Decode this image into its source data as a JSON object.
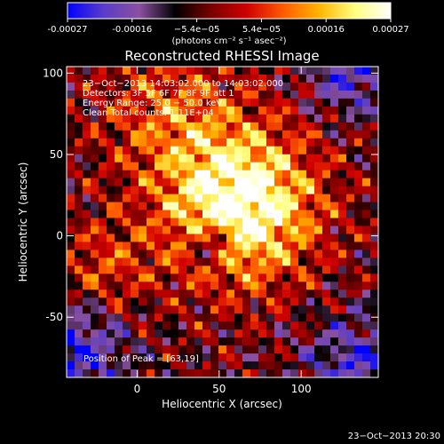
{
  "chart_data": {
    "type": "heatmap",
    "title": "Reconstructed RHESSI Image",
    "xlabel": "Heliocentric X (arcsec)",
    "ylabel": "Heliocentric Y (arcsec)",
    "xlim": [
      -43,
      147
    ],
    "ylim": [
      -87,
      104
    ],
    "xticks": [
      0,
      50,
      100
    ],
    "yticks": [
      -50,
      0,
      50,
      100
    ],
    "colorbar": {
      "min": -0.00027,
      "max": 0.00027,
      "ticks": [
        "-0.00027",
        "-0.00016",
        "−5.4e−05",
        "5.4e−05",
        "0.00016",
        "0.00027"
      ],
      "unit_label": "(photons cm⁻² s⁻¹ asec⁻²)",
      "colormap": [
        "#0000ff",
        "#5a3cc8",
        "#8a50a0",
        "#000000",
        "#7a0000",
        "#d00000",
        "#ff5a00",
        "#ffb400",
        "#ffff80",
        "#ffffff"
      ]
    },
    "annotations": [
      "23−Oct−2013 14:03:02.000 to 14:03:02.000",
      "Detectors: 3F 5F 6F 7F 8F 9F att 1",
      "Energy Range: 25.0 − 50.0 keV",
      "Clean     Total counts: 1.11E+04"
    ],
    "peak_label": "Position of Peak = [63,19]",
    "peak": [
      63,
      19
    ]
  },
  "footer": {
    "timestamp": "23−Oct−2013 20:30"
  }
}
